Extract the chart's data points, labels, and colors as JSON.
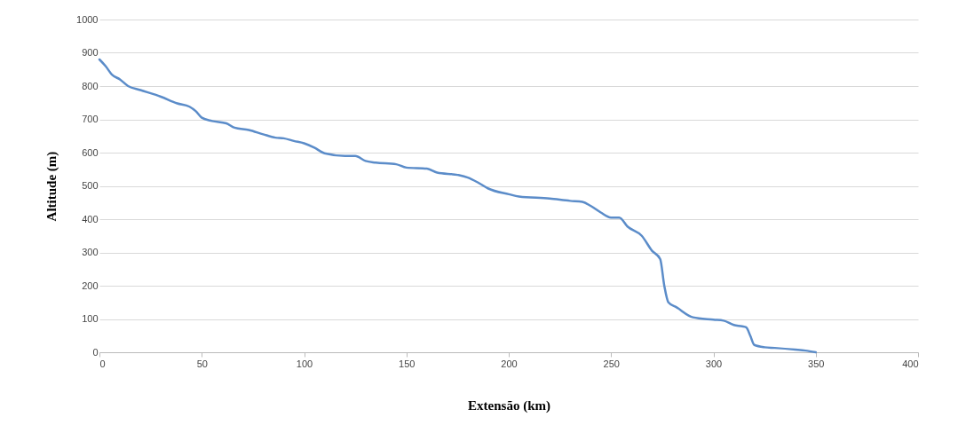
{
  "chart_data": {
    "type": "line",
    "xlabel": "Extensão (km)",
    "ylabel": "Altitude (m)",
    "x": [
      0,
      3,
      6,
      10,
      14,
      20,
      30,
      38,
      44,
      47,
      50,
      55,
      62,
      66,
      73,
      80,
      86,
      90,
      95,
      100,
      105,
      110,
      120,
      125,
      130,
      135,
      145,
      150,
      160,
      165,
      175,
      180,
      185,
      190,
      200,
      205,
      220,
      230,
      236,
      240,
      245,
      250,
      254,
      258,
      265,
      270,
      274,
      276,
      278,
      282,
      290,
      300,
      305,
      310,
      314,
      316,
      318,
      320,
      325,
      330,
      340,
      345,
      350
    ],
    "series": [
      {
        "color": "#5b8cc9",
        "values": [
          880,
          860,
          835,
          820,
          800,
          788,
          768,
          748,
          738,
          725,
          705,
          695,
          688,
          675,
          668,
          655,
          645,
          643,
          635,
          628,
          615,
          598,
          590,
          590,
          575,
          570,
          565,
          555,
          552,
          540,
          533,
          525,
          510,
          492,
          475,
          468,
          462,
          455,
          452,
          440,
          420,
          405,
          405,
          378,
          350,
          305,
          280,
          200,
          150,
          135,
          105,
          98,
          95,
          82,
          78,
          75,
          50,
          22,
          15,
          13,
          8,
          5,
          0
        ]
      }
    ],
    "xlim": [
      0,
      400
    ],
    "xticks": [
      0,
      50,
      100,
      150,
      200,
      250,
      300,
      350,
      400
    ],
    "ylim": [
      0,
      1000
    ],
    "yticks": [
      0,
      100,
      200,
      300,
      400,
      500,
      600,
      700,
      800,
      900,
      1000
    ],
    "grid": "y",
    "legend": false,
    "marker": "none",
    "line_style": "solid"
  }
}
